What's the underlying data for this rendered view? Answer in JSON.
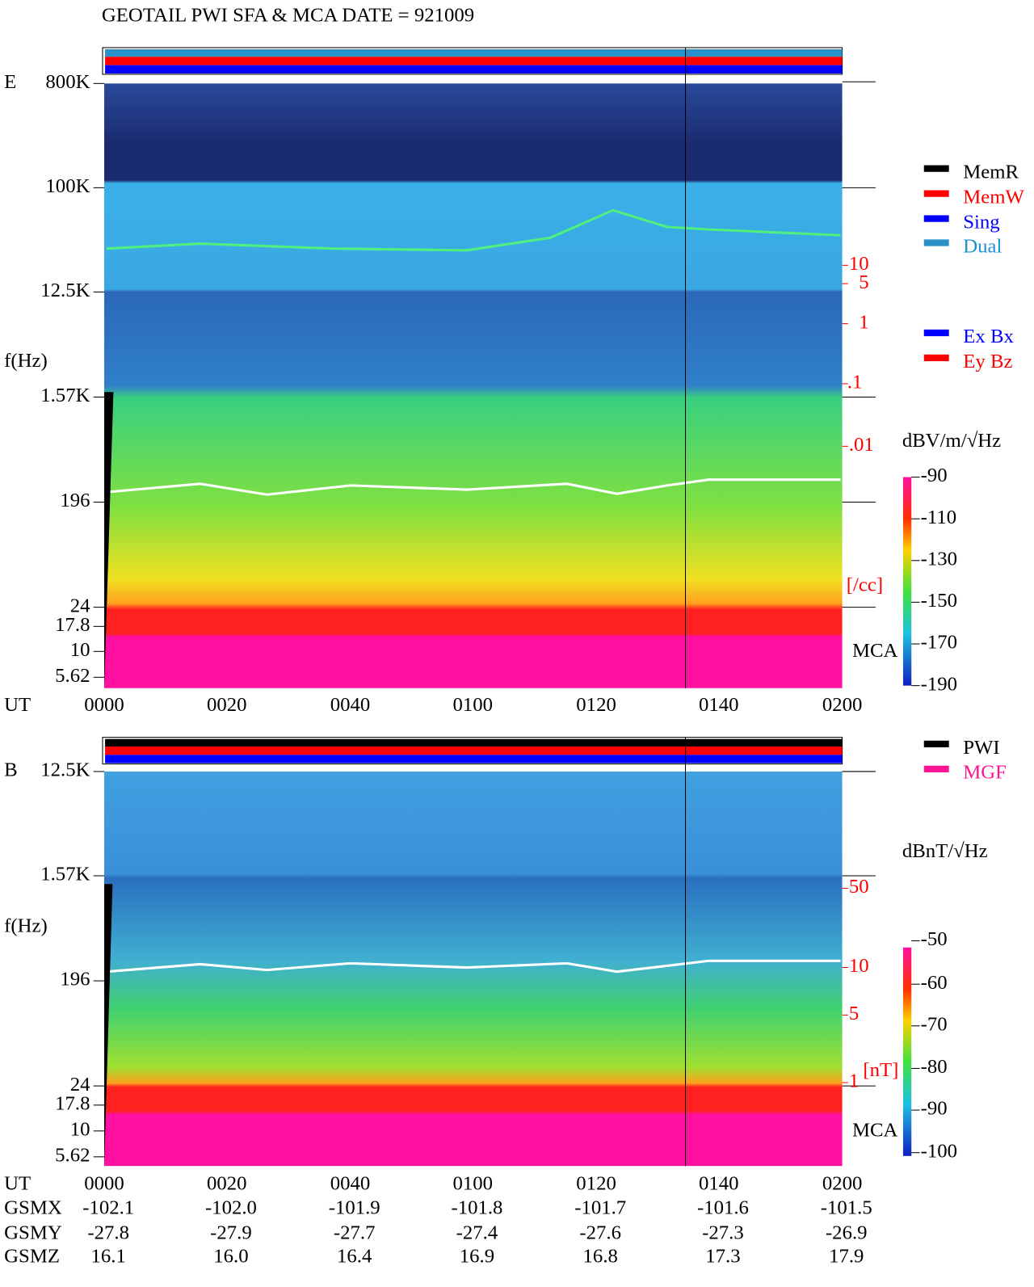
{
  "title": "GEOTAIL   PWI SFA & MCA   DATE = 921009",
  "panels": [
    {
      "label": "E",
      "ylabel": "f(Hz)",
      "yticks": [
        "800K",
        "100K",
        "12.5K",
        "1.57K",
        "196",
        "24",
        "17.8",
        "10",
        "5.62"
      ],
      "xlabel": "UT",
      "xticks": [
        "0000",
        "0020",
        "0040",
        "0100",
        "0120",
        "0140",
        "0200"
      ],
      "legend_top": [
        "MemR",
        "MemW",
        "Sing",
        "Dual"
      ],
      "legend_bottom": [
        "Ex Bx",
        "Ey Bz"
      ],
      "right_ticks": [
        "10",
        "5",
        "1",
        ".1",
        ".01"
      ],
      "right_unit": "[/cc]",
      "mca_label": "MCA",
      "colorbar_unit": "dBV/m/√Hz",
      "colorbar_ticks": [
        "-90",
        "-110",
        "-130",
        "-150",
        "-170",
        "-190"
      ]
    },
    {
      "label": "B",
      "ylabel": "f(Hz)",
      "yticks": [
        "12.5K",
        "1.57K",
        "196",
        "24",
        "17.8",
        "10",
        "5.62"
      ],
      "xlabel": "UT",
      "xticks": [
        "0000",
        "0020",
        "0040",
        "0100",
        "0120",
        "0140",
        "0200"
      ],
      "legend_top": [
        "PWI",
        "MGF"
      ],
      "right_ticks": [
        "50",
        "10",
        "5",
        "1"
      ],
      "right_unit": "[nT]",
      "mca_label": "MCA",
      "colorbar_unit": "dBnT/√Hz",
      "colorbar_ticks": [
        "-50",
        "-60",
        "-70",
        "-80",
        "-90",
        "-100"
      ]
    }
  ],
  "orbit": [
    {
      "label": "GSMX",
      "values": [
        "-102.1",
        "-102.0",
        "-101.9",
        "-101.8",
        "-101.7",
        "-101.6",
        "-101.5"
      ]
    },
    {
      "label": "GSMY",
      "values": [
        "-27.8",
        "-27.9",
        "-27.7",
        "-27.4",
        "-27.6",
        "-27.3",
        "-26.9"
      ]
    },
    {
      "label": "GSMZ",
      "values": [
        "16.1",
        "16.0",
        "16.4",
        "16.9",
        "16.8",
        "17.3",
        "17.9"
      ]
    }
  ]
}
